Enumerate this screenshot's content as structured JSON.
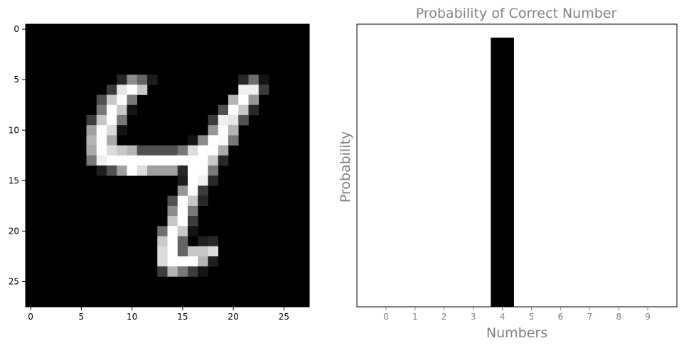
{
  "chart_data": [
    {
      "type": "heatmap",
      "colormap": "gray",
      "title": "",
      "xlabel": "",
      "ylabel": "",
      "xlim": [
        -0.5,
        27.5
      ],
      "ylim": [
        27.5,
        -0.5
      ],
      "xticks": [
        0,
        5,
        10,
        15,
        20,
        25
      ],
      "yticks": [
        0,
        5,
        10,
        15,
        20,
        25
      ],
      "rows": 28,
      "cols": 28,
      "pixels": [
        {
          "r": 5,
          "c": 9,
          "v": 40
        },
        {
          "r": 5,
          "c": 10,
          "v": 140
        },
        {
          "r": 5,
          "c": 11,
          "v": 100
        },
        {
          "r": 5,
          "c": 12,
          "v": 30
        },
        {
          "r": 5,
          "c": 21,
          "v": 40
        },
        {
          "r": 5,
          "c": 22,
          "v": 110
        },
        {
          "r": 5,
          "c": 23,
          "v": 20
        },
        {
          "r": 6,
          "c": 8,
          "v": 60
        },
        {
          "r": 6,
          "c": 9,
          "v": 230
        },
        {
          "r": 6,
          "c": 10,
          "v": 255
        },
        {
          "r": 6,
          "c": 11,
          "v": 200
        },
        {
          "r": 6,
          "c": 21,
          "v": 240
        },
        {
          "r": 6,
          "c": 22,
          "v": 240
        },
        {
          "r": 6,
          "c": 23,
          "v": 60
        },
        {
          "r": 7,
          "c": 7,
          "v": 80
        },
        {
          "r": 7,
          "c": 8,
          "v": 200
        },
        {
          "r": 7,
          "c": 9,
          "v": 255
        },
        {
          "r": 7,
          "c": 10,
          "v": 120
        },
        {
          "r": 7,
          "c": 20,
          "v": 180
        },
        {
          "r": 7,
          "c": 21,
          "v": 255
        },
        {
          "r": 7,
          "c": 22,
          "v": 150
        },
        {
          "r": 8,
          "c": 7,
          "v": 120
        },
        {
          "r": 8,
          "c": 8,
          "v": 255
        },
        {
          "r": 8,
          "c": 9,
          "v": 200
        },
        {
          "r": 8,
          "c": 10,
          "v": 20
        },
        {
          "r": 8,
          "c": 19,
          "v": 80
        },
        {
          "r": 8,
          "c": 20,
          "v": 255
        },
        {
          "r": 8,
          "c": 21,
          "v": 200
        },
        {
          "r": 8,
          "c": 22,
          "v": 40
        },
        {
          "r": 9,
          "c": 6,
          "v": 60
        },
        {
          "r": 9,
          "c": 7,
          "v": 200
        },
        {
          "r": 9,
          "c": 8,
          "v": 255
        },
        {
          "r": 9,
          "c": 9,
          "v": 120
        },
        {
          "r": 9,
          "c": 18,
          "v": 60
        },
        {
          "r": 9,
          "c": 19,
          "v": 240
        },
        {
          "r": 9,
          "c": 20,
          "v": 230
        },
        {
          "r": 9,
          "c": 21,
          "v": 80
        },
        {
          "r": 10,
          "c": 6,
          "v": 160
        },
        {
          "r": 10,
          "c": 7,
          "v": 255
        },
        {
          "r": 10,
          "c": 8,
          "v": 220
        },
        {
          "r": 10,
          "c": 9,
          "v": 20
        },
        {
          "r": 10,
          "c": 18,
          "v": 150
        },
        {
          "r": 10,
          "c": 19,
          "v": 255
        },
        {
          "r": 10,
          "c": 20,
          "v": 180
        },
        {
          "r": 11,
          "c": 6,
          "v": 180
        },
        {
          "r": 11,
          "c": 7,
          "v": 255
        },
        {
          "r": 11,
          "c": 8,
          "v": 170
        },
        {
          "r": 11,
          "c": 16,
          "v": 20
        },
        {
          "r": 11,
          "c": 17,
          "v": 140
        },
        {
          "r": 11,
          "c": 18,
          "v": 255
        },
        {
          "r": 11,
          "c": 19,
          "v": 250
        },
        {
          "r": 11,
          "c": 20,
          "v": 120
        },
        {
          "r": 12,
          "c": 6,
          "v": 170
        },
        {
          "r": 12,
          "c": 7,
          "v": 255
        },
        {
          "r": 12,
          "c": 8,
          "v": 220
        },
        {
          "r": 12,
          "c": 9,
          "v": 200
        },
        {
          "r": 12,
          "c": 10,
          "v": 180
        },
        {
          "r": 12,
          "c": 11,
          "v": 80
        },
        {
          "r": 12,
          "c": 12,
          "v": 80
        },
        {
          "r": 12,
          "c": 13,
          "v": 80
        },
        {
          "r": 12,
          "c": 14,
          "v": 80
        },
        {
          "r": 12,
          "c": 15,
          "v": 120
        },
        {
          "r": 12,
          "c": 16,
          "v": 220
        },
        {
          "r": 12,
          "c": 17,
          "v": 255
        },
        {
          "r": 12,
          "c": 18,
          "v": 255
        },
        {
          "r": 12,
          "c": 19,
          "v": 170
        },
        {
          "r": 13,
          "c": 6,
          "v": 120
        },
        {
          "r": 13,
          "c": 7,
          "v": 240
        },
        {
          "r": 13,
          "c": 8,
          "v": 255
        },
        {
          "r": 13,
          "c": 9,
          "v": 255
        },
        {
          "r": 13,
          "c": 10,
          "v": 255
        },
        {
          "r": 13,
          "c": 11,
          "v": 255
        },
        {
          "r": 13,
          "c": 12,
          "v": 255
        },
        {
          "r": 13,
          "c": 13,
          "v": 255
        },
        {
          "r": 13,
          "c": 14,
          "v": 255
        },
        {
          "r": 13,
          "c": 15,
          "v": 255
        },
        {
          "r": 13,
          "c": 16,
          "v": 255
        },
        {
          "r": 13,
          "c": 17,
          "v": 255
        },
        {
          "r": 13,
          "c": 18,
          "v": 200
        },
        {
          "r": 13,
          "c": 19,
          "v": 40
        },
        {
          "r": 14,
          "c": 7,
          "v": 30
        },
        {
          "r": 14,
          "c": 8,
          "v": 80
        },
        {
          "r": 14,
          "c": 9,
          "v": 160
        },
        {
          "r": 14,
          "c": 10,
          "v": 255
        },
        {
          "r": 14,
          "c": 11,
          "v": 220
        },
        {
          "r": 14,
          "c": 12,
          "v": 160
        },
        {
          "r": 14,
          "c": 13,
          "v": 160
        },
        {
          "r": 14,
          "c": 14,
          "v": 160
        },
        {
          "r": 14,
          "c": 15,
          "v": 40
        },
        {
          "r": 14,
          "c": 16,
          "v": 255
        },
        {
          "r": 14,
          "c": 17,
          "v": 255
        },
        {
          "r": 14,
          "c": 18,
          "v": 120
        },
        {
          "r": 15,
          "c": 15,
          "v": 30
        },
        {
          "r": 15,
          "c": 16,
          "v": 255
        },
        {
          "r": 15,
          "c": 17,
          "v": 240
        },
        {
          "r": 15,
          "c": 18,
          "v": 40
        },
        {
          "r": 16,
          "c": 15,
          "v": 150
        },
        {
          "r": 16,
          "c": 16,
          "v": 255
        },
        {
          "r": 16,
          "c": 17,
          "v": 60
        },
        {
          "r": 17,
          "c": 14,
          "v": 80
        },
        {
          "r": 17,
          "c": 15,
          "v": 255
        },
        {
          "r": 17,
          "c": 16,
          "v": 200
        },
        {
          "r": 17,
          "c": 17,
          "v": 40
        },
        {
          "r": 18,
          "c": 14,
          "v": 140
        },
        {
          "r": 18,
          "c": 15,
          "v": 255
        },
        {
          "r": 18,
          "c": 16,
          "v": 120
        },
        {
          "r": 19,
          "c": 14,
          "v": 200
        },
        {
          "r": 19,
          "c": 15,
          "v": 255
        },
        {
          "r": 19,
          "c": 16,
          "v": 60
        },
        {
          "r": 20,
          "c": 13,
          "v": 110
        },
        {
          "r": 20,
          "c": 14,
          "v": 255
        },
        {
          "r": 20,
          "c": 15,
          "v": 200
        },
        {
          "r": 20,
          "c": 16,
          "v": 20
        },
        {
          "r": 21,
          "c": 13,
          "v": 200
        },
        {
          "r": 21,
          "c": 14,
          "v": 255
        },
        {
          "r": 21,
          "c": 15,
          "v": 100
        },
        {
          "r": 21,
          "c": 17,
          "v": 30
        },
        {
          "r": 21,
          "c": 18,
          "v": 40
        },
        {
          "r": 22,
          "c": 13,
          "v": 220
        },
        {
          "r": 22,
          "c": 14,
          "v": 255
        },
        {
          "r": 22,
          "c": 15,
          "v": 100
        },
        {
          "r": 22,
          "c": 16,
          "v": 200
        },
        {
          "r": 22,
          "c": 17,
          "v": 200
        },
        {
          "r": 22,
          "c": 18,
          "v": 220
        },
        {
          "r": 23,
          "c": 13,
          "v": 220
        },
        {
          "r": 23,
          "c": 14,
          "v": 255
        },
        {
          "r": 23,
          "c": 15,
          "v": 255
        },
        {
          "r": 23,
          "c": 16,
          "v": 255
        },
        {
          "r": 23,
          "c": 17,
          "v": 180
        },
        {
          "r": 23,
          "c": 18,
          "v": 30
        },
        {
          "r": 24,
          "c": 13,
          "v": 60
        },
        {
          "r": 24,
          "c": 14,
          "v": 180
        },
        {
          "r": 24,
          "c": 15,
          "v": 120
        },
        {
          "r": 24,
          "c": 16,
          "v": 60
        },
        {
          "r": 24,
          "c": 17,
          "v": 20
        }
      ]
    },
    {
      "type": "bar",
      "title": "Probability of Correct Number",
      "xlabel": "Numbers",
      "ylabel": "Probability",
      "categories": [
        "0",
        "1",
        "2",
        "3",
        "4",
        "5",
        "6",
        "7",
        "8",
        "9"
      ],
      "values": [
        0,
        0,
        0,
        0,
        1.0,
        0,
        0,
        0,
        0,
        0
      ],
      "xlim": [
        -1,
        10
      ],
      "ylim": [
        0,
        1.05
      ],
      "bar_color": "#000000",
      "text_color": "#808080",
      "grid": false,
      "yticks_visible": false
    }
  ]
}
